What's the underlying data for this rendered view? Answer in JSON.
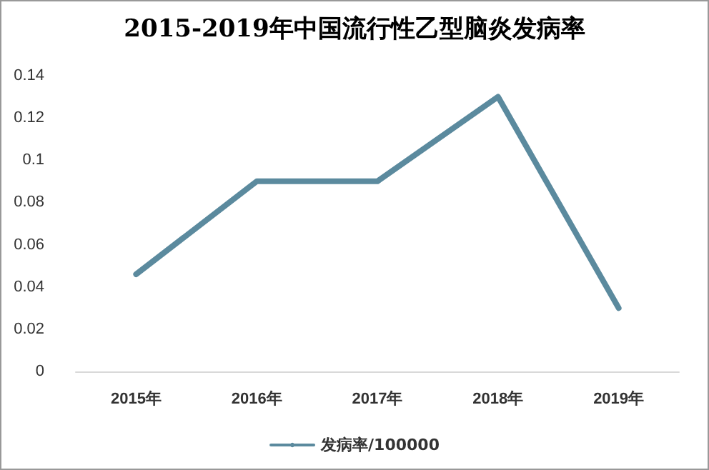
{
  "chart_data": {
    "type": "line",
    "title": "2015-2019年中国流行性乙型脑炎发病率",
    "categories": [
      "2015年",
      "2016年",
      "2017年",
      "2018年",
      "2019年"
    ],
    "series": [
      {
        "name": "发病率/100000",
        "color": "#5b8a9e",
        "values": [
          0.046,
          0.09,
          0.09,
          0.13,
          0.03
        ]
      }
    ],
    "ylim": [
      0,
      0.14
    ],
    "yticks": [
      0,
      0.02,
      0.04,
      0.06,
      0.08,
      0.1,
      0.12,
      0.14
    ],
    "grid": false,
    "legend": "bottom",
    "marker": "none",
    "line_style": "solid"
  }
}
